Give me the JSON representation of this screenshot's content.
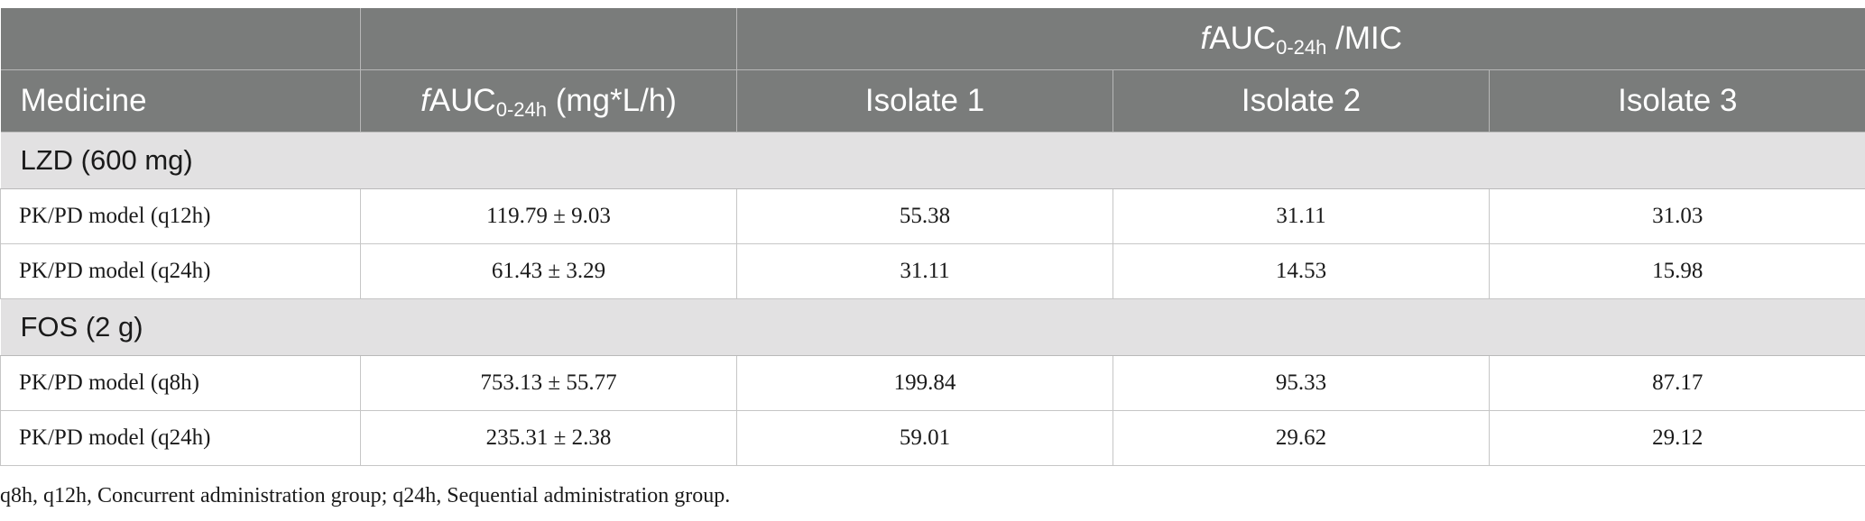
{
  "header": {
    "top_group_prefix": "f",
    "top_group_main": "AUC",
    "top_group_sub": "0-24h",
    "top_group_suffix": " /MIC",
    "col_medicine": "Medicine",
    "col_auc_prefix": "f",
    "col_auc_main": "AUC",
    "col_auc_sub": "0-24h",
    "col_auc_suffix": " (mg*L/h)",
    "col_isolate1": "Isolate 1",
    "col_isolate2": "Isolate 2",
    "col_isolate3": "Isolate 3"
  },
  "groups": [
    {
      "name": "LZD (600 mg)",
      "rows": [
        {
          "model": "PK/PD model (q12h)",
          "auc": "119.79 ± 9.03",
          "iso1": "55.38",
          "iso2": "31.11",
          "iso3": "31.03"
        },
        {
          "model": "PK/PD model (q24h)",
          "auc": "61.43 ± 3.29",
          "iso1": "31.11",
          "iso2": "14.53",
          "iso3": "15.98"
        }
      ]
    },
    {
      "name": "FOS (2 g)",
      "rows": [
        {
          "model": "PK/PD model (q8h)",
          "auc": "753.13 ± 55.77",
          "iso1": "199.84",
          "iso2": "95.33",
          "iso3": "87.17"
        },
        {
          "model": "PK/PD model (q24h)",
          "auc": "235.31 ± 2.38",
          "iso1": "59.01",
          "iso2": "29.62",
          "iso3": "29.12"
        }
      ]
    }
  ],
  "footnote": "q8h, q12h, Concurrent administration group; q24h, Sequential administration group."
}
